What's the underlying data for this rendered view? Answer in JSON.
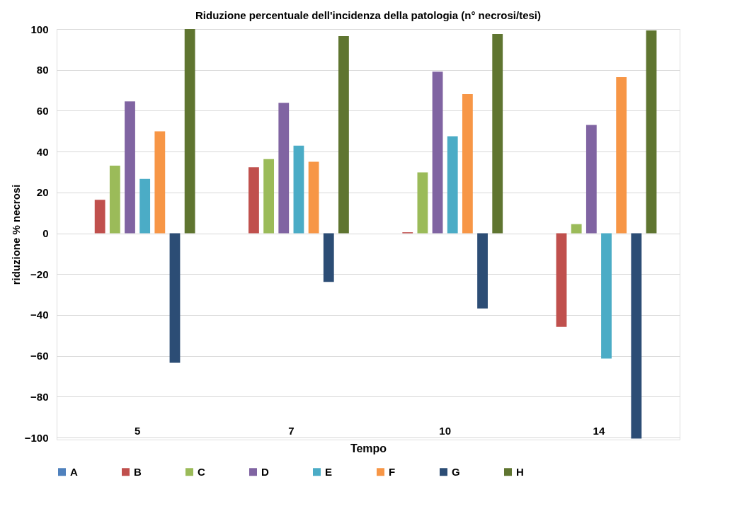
{
  "chart_data": {
    "type": "bar",
    "title": "Riduzione percentuale dell'incidenza della patologia (n° necrosi/tesi)",
    "xlabel": "Tempo",
    "ylabel": "riduzione % necrosi",
    "categories": [
      "5",
      "7",
      "10",
      "14"
    ],
    "series": [
      {
        "name": "A",
        "color": "#4f81bd",
        "values": [
          0,
          0,
          0,
          0
        ]
      },
      {
        "name": "B",
        "color": "#c0504d",
        "values": [
          16.4,
          32.3,
          0.5,
          -45.8
        ]
      },
      {
        "name": "C",
        "color": "#9bbb59",
        "values": [
          33.1,
          36.3,
          29.8,
          4.5
        ]
      },
      {
        "name": "D",
        "color": "#8064a2",
        "values": [
          64.6,
          63.9,
          79.1,
          53.0
        ]
      },
      {
        "name": "E",
        "color": "#4bacc6",
        "values": [
          26.6,
          42.9,
          47.5,
          -61.3
        ]
      },
      {
        "name": "F",
        "color": "#f79646",
        "values": [
          49.9,
          35.0,
          68.1,
          76.4
        ]
      },
      {
        "name": "G",
        "color": "#2c4d75",
        "values": [
          -63.4,
          -23.8,
          -36.8,
          -100.5
        ]
      },
      {
        "name": "H",
        "color": "#5f7530",
        "values": [
          100,
          96.5,
          97.6,
          99.3
        ]
      }
    ],
    "ylim": [
      -101,
      100
    ],
    "yticks": [
      -100,
      -80,
      -60,
      -40,
      -20,
      0,
      20,
      40,
      60,
      80,
      100
    ],
    "grid": "y",
    "legend": "bottom"
  }
}
